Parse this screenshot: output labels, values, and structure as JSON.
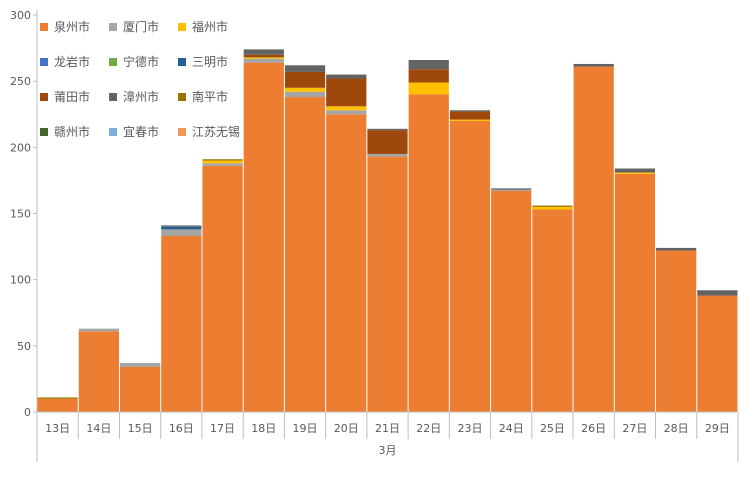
{
  "chart_data": {
    "type": "bar",
    "stacked": true,
    "categories": [
      "13日",
      "14日",
      "15日",
      "16日",
      "17日",
      "18日",
      "19日",
      "20日",
      "21日",
      "22日",
      "23日",
      "24日",
      "25日",
      "26日",
      "27日",
      "28日",
      "29日"
    ],
    "x_group_label": "3月",
    "ylim": [
      0,
      300
    ],
    "yticks": [
      0,
      50,
      100,
      150,
      200,
      250,
      300
    ],
    "grid": false,
    "legend_position": "top-left",
    "series": [
      {
        "name": "泉州市",
        "color": "#ED7D31",
        "values": [
          10,
          61,
          34,
          133,
          186,
          264,
          238,
          225,
          193,
          240,
          220,
          167,
          153,
          261,
          180,
          122,
          88
        ]
      },
      {
        "name": "厦门市",
        "color": "#A5A5A5",
        "values": [
          0,
          2,
          3,
          5,
          2,
          3,
          4,
          3,
          2,
          0,
          0,
          1,
          0,
          0,
          0,
          0,
          0
        ]
      },
      {
        "name": "福州市",
        "color": "#FFC000",
        "values": [
          0,
          0,
          0,
          0,
          2,
          1,
          3,
          3,
          0,
          9,
          1,
          0,
          2,
          0,
          1,
          0,
          0
        ]
      },
      {
        "name": "龙岩市",
        "color": "#4472C4",
        "values": [
          0,
          0,
          0,
          0,
          0,
          0,
          0,
          0,
          0,
          0,
          0,
          0,
          0,
          0,
          0,
          0,
          0
        ]
      },
      {
        "name": "宁德市",
        "color": "#70AD47",
        "values": [
          0,
          0,
          0,
          0,
          0,
          0,
          0,
          0,
          0,
          0,
          0,
          0,
          0,
          0,
          0,
          0,
          0
        ]
      },
      {
        "name": "三明市",
        "color": "#255E91",
        "values": [
          0,
          0,
          0,
          2,
          0,
          0,
          0,
          0,
          0,
          0,
          0,
          0,
          0,
          0,
          0,
          0,
          0
        ]
      },
      {
        "name": "莆田市",
        "color": "#9E480E",
        "values": [
          0,
          0,
          0,
          0,
          0,
          2,
          12,
          21,
          18,
          10,
          6,
          0,
          0,
          0,
          0,
          0,
          0
        ]
      },
      {
        "name": "漳州市",
        "color": "#636363",
        "values": [
          0,
          0,
          0,
          1,
          0,
          4,
          5,
          3,
          1,
          7,
          1,
          1,
          0,
          2,
          3,
          2,
          4
        ]
      },
      {
        "name": "南平市",
        "color": "#997300",
        "values": [
          1,
          0,
          0,
          0,
          1,
          0,
          0,
          0,
          0,
          0,
          0,
          0,
          1,
          0,
          0,
          0,
          0
        ]
      },
      {
        "name": "赣州市",
        "color": "#43682B",
        "values": [
          0,
          0,
          0,
          0,
          0,
          0,
          0,
          0,
          0,
          0,
          0,
          0,
          0,
          0,
          0,
          0,
          0
        ]
      },
      {
        "name": "宜春市",
        "color": "#7CAFDD",
        "values": [
          0,
          0,
          0,
          0,
          0,
          0,
          0,
          0,
          0,
          0,
          0,
          0,
          0,
          0,
          0,
          0,
          0
        ]
      },
      {
        "name": "江苏无锡",
        "color": "#F1975A",
        "values": [
          0,
          0,
          0,
          0,
          0,
          0,
          0,
          0,
          0,
          0,
          0,
          0,
          0,
          0,
          0,
          0,
          0
        ]
      }
    ]
  }
}
